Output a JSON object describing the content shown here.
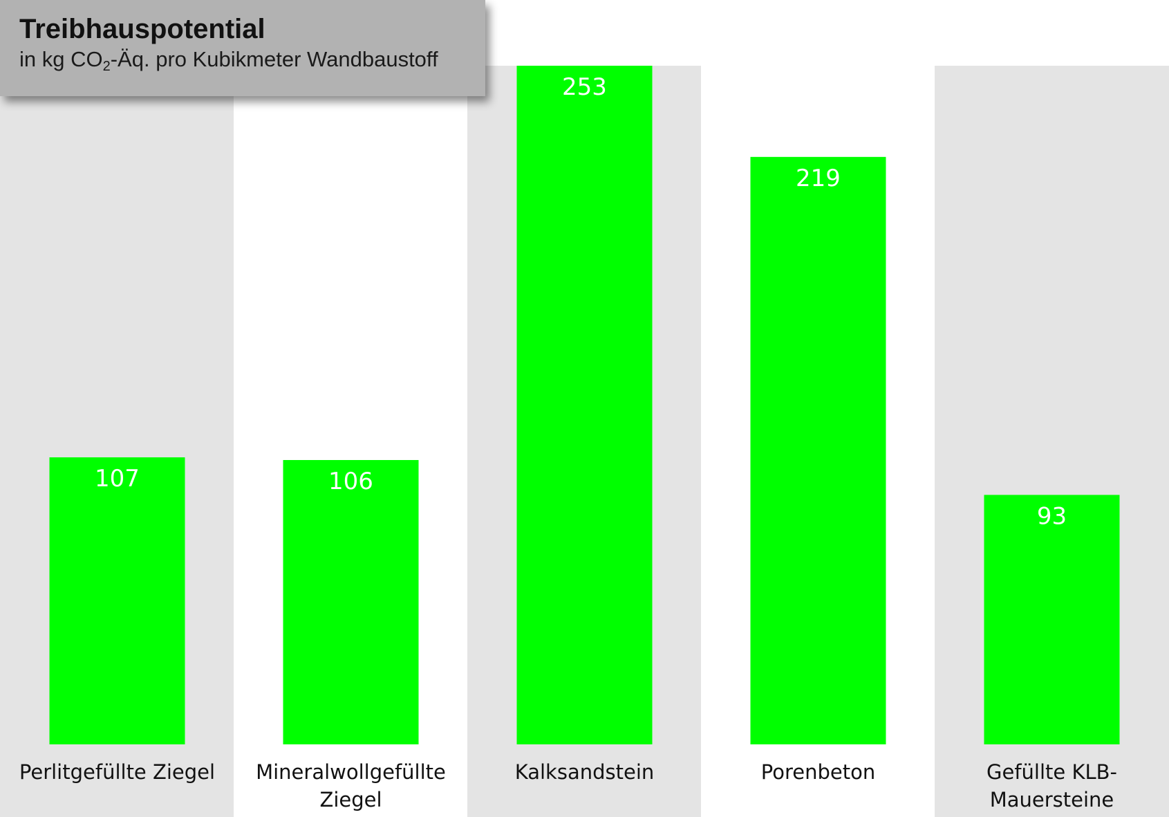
{
  "colors": {
    "bar": "#00ff00",
    "band_shade": "#e4e4e4",
    "band_plain": "#ffffff",
    "value_label": "#ffffff",
    "title_box": "#b2b2b2"
  },
  "title": {
    "main": "Treibhauspotential",
    "sub_prefix": "in kg CO",
    "sub_subscript": "2",
    "sub_suffix": "-Äq. pro Kubikmeter Wandbaustoff"
  },
  "chart_data": {
    "type": "bar",
    "title": "Treibhauspotential",
    "subtitle": "in kg CO2-Äq. pro Kubikmeter Wandbaustoff",
    "xlabel": "",
    "ylabel": "",
    "ylim": [
      0,
      253
    ],
    "grid": false,
    "legend": "none",
    "categories": [
      [
        "Perlitgefüllte Ziegel"
      ],
      [
        "Mineralwollgefüllte",
        "Ziegel"
      ],
      [
        "Kalksandstein"
      ],
      [
        "Porenbeton"
      ],
      [
        "Gefüllte KLB-",
        "Mauersteine"
      ]
    ],
    "values": [
      107,
      106,
      253,
      219,
      93
    ],
    "value_labels": [
      "107",
      "106",
      "253",
      "219",
      "93"
    ]
  }
}
